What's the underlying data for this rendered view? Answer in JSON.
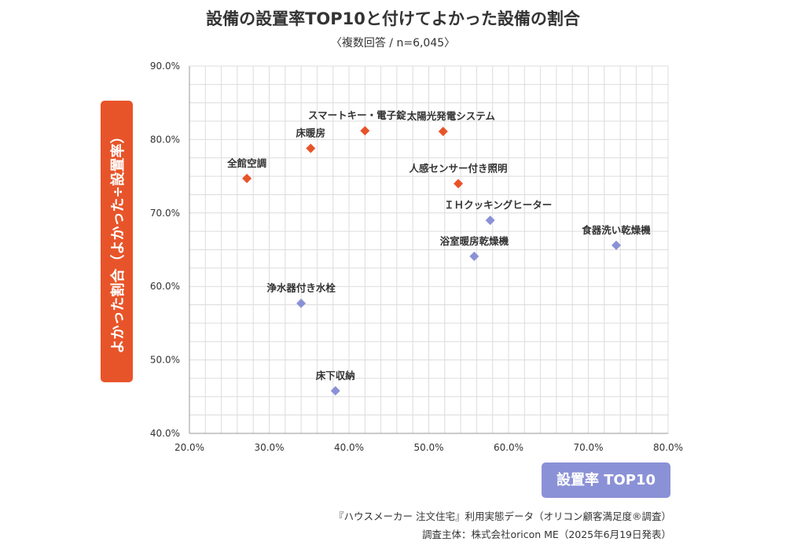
{
  "title": "設備の設置率TOP10と付けてよかった設備の割合",
  "subtitle": "〈複数回答 / n=6,045〉",
  "ylabel": "よかった割合（よかった÷設置率）",
  "xlabel": "設置率 TOP10",
  "source_line1": "『ハウスメーカー 注文住宅』利用実態データ（オリコン顧客満足度®調査）",
  "source_line2": "調査主体：株式会社oricon ME（2025年6月19日発表）",
  "colors": {
    "highlight": "#e8542a",
    "normal": "#8b91d6",
    "grid": "#dcdcdc"
  },
  "chart_data": {
    "type": "scatter",
    "xlim": [
      20,
      80
    ],
    "ylim": [
      40,
      90
    ],
    "x_ticks": [
      "20.0%",
      "30.0%",
      "40.0%",
      "50.0%",
      "60.0%",
      "70.0%",
      "80.0%"
    ],
    "y_ticks": [
      "40.0%",
      "50.0%",
      "60.0%",
      "70.0%",
      "80.0%",
      "90.0%"
    ],
    "grid": true,
    "marker": "diamond",
    "points": [
      {
        "label": "スマートキー・電子錠",
        "x": 42.0,
        "y": 81.2,
        "group": "highlight",
        "label_pos": "above-left"
      },
      {
        "label": "太陽光発電システム",
        "x": 51.8,
        "y": 81.1,
        "group": "highlight",
        "label_pos": "above-right"
      },
      {
        "label": "床暖房",
        "x": 35.2,
        "y": 78.8,
        "group": "highlight",
        "label_pos": "above"
      },
      {
        "label": "全館空調",
        "x": 27.2,
        "y": 74.7,
        "group": "highlight",
        "label_pos": "above"
      },
      {
        "label": "人感センサー付き照明",
        "x": 53.7,
        "y": 74.0,
        "group": "highlight",
        "label_pos": "above"
      },
      {
        "label": "ＩＨクッキングヒーター",
        "x": 57.7,
        "y": 69.0,
        "group": "normal",
        "label_pos": "above-right"
      },
      {
        "label": "食器洗い乾燥機",
        "x": 73.5,
        "y": 65.6,
        "group": "normal",
        "label_pos": "above"
      },
      {
        "label": "浴室暖房乾燥機",
        "x": 55.7,
        "y": 64.1,
        "group": "normal",
        "label_pos": "above"
      },
      {
        "label": "浄水器付き水栓",
        "x": 34.0,
        "y": 57.7,
        "group": "normal",
        "label_pos": "above"
      },
      {
        "label": "床下収納",
        "x": 38.3,
        "y": 45.8,
        "group": "normal",
        "label_pos": "above"
      }
    ]
  }
}
